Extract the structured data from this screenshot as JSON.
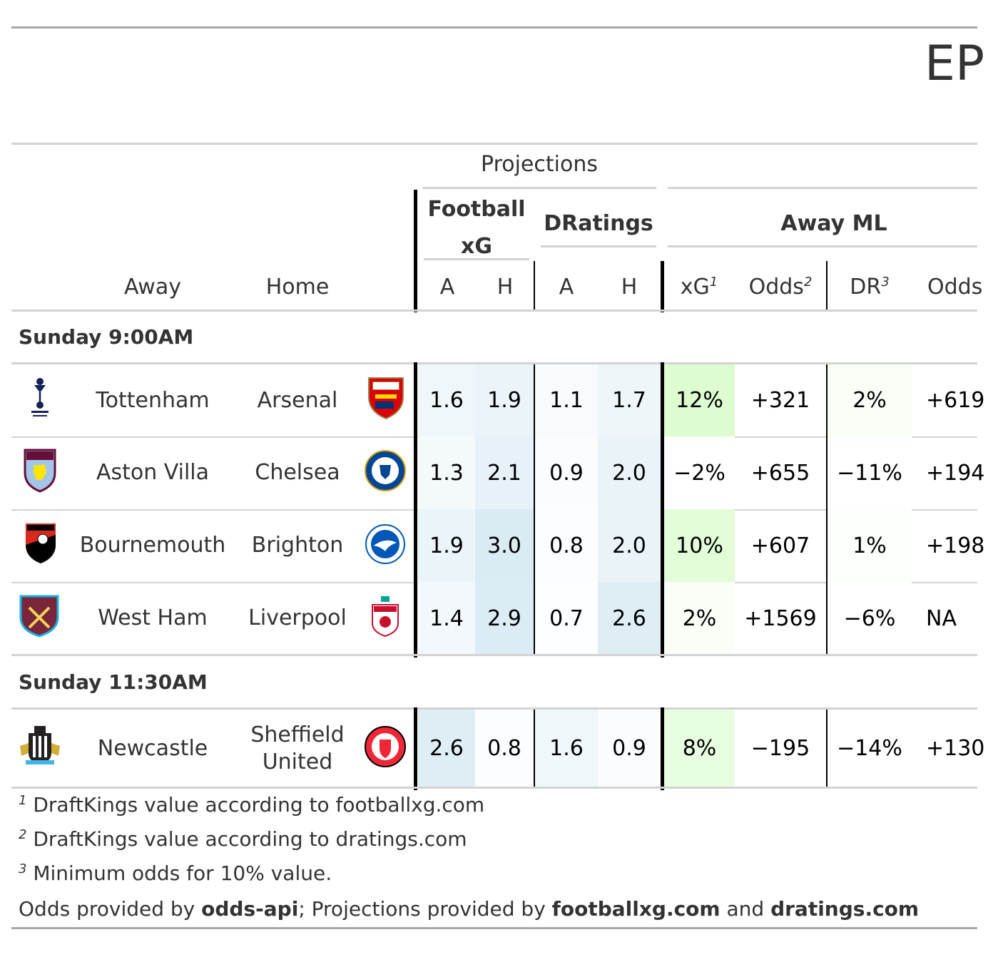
{
  "title": "EP",
  "spanners": {
    "projections": "Projections",
    "football_xg": [
      "Football",
      "xG"
    ],
    "dratings": "DRatings",
    "away_ml": "Away ML"
  },
  "columns": {
    "away": "Away",
    "home": "Home",
    "fxg_a": "A",
    "fxg_h": "H",
    "dr_a": "A",
    "dr_h": "H",
    "xg": "xG",
    "xg_sup": "1",
    "odds": "Odds",
    "odds_sup": "2",
    "dr": "DR",
    "dr_sup": "3",
    "odds2": "Odds"
  },
  "groups": [
    {
      "label": "Sunday 9:00AM",
      "rows": [
        {
          "away": "Tottenham",
          "home": "Arsenal",
          "away_logo": "tottenham-crest-icon",
          "home_logo": "arsenal-crest-icon",
          "fxg_a": "1.6",
          "fxg_h": "1.9",
          "dr_a": "1.1",
          "dr_h": "1.7",
          "xg_value": "12%",
          "odds": "+321",
          "dr_value": "2%",
          "odds2": "+619"
        },
        {
          "away": "Aston Villa",
          "home": "Chelsea",
          "away_logo": "aston-villa-crest-icon",
          "home_logo": "chelsea-crest-icon",
          "fxg_a": "1.3",
          "fxg_h": "2.1",
          "dr_a": "0.9",
          "dr_h": "2.0",
          "xg_value": "−2%",
          "odds": "+655",
          "dr_value": "−11%",
          "odds2": "+194"
        },
        {
          "away": "Bournemouth",
          "home": "Brighton",
          "away_logo": "bournemouth-crest-icon",
          "home_logo": "brighton-crest-icon",
          "fxg_a": "1.9",
          "fxg_h": "3.0",
          "dr_a": "0.8",
          "dr_h": "2.0",
          "xg_value": "10%",
          "odds": "+607",
          "dr_value": "1%",
          "odds2": "+198"
        },
        {
          "away": "West Ham",
          "home": "Liverpool",
          "away_logo": "west-ham-crest-icon",
          "home_logo": "liverpool-crest-icon",
          "fxg_a": "1.4",
          "fxg_h": "2.9",
          "dr_a": "0.7",
          "dr_h": "2.6",
          "xg_value": "2%",
          "odds": "+1569",
          "dr_value": "−6%",
          "odds2": "NA"
        }
      ]
    },
    {
      "label": "Sunday 11:30AM",
      "rows": [
        {
          "away": "Newcastle",
          "home": "Sheffield\nUnited",
          "away_logo": "newcastle-crest-icon",
          "home_logo": "sheffield-united-crest-icon",
          "fxg_a": "2.6",
          "fxg_h": "0.8",
          "dr_a": "1.6",
          "dr_h": "0.9",
          "xg_value": "8%",
          "odds": "−195",
          "dr_value": "−14%",
          "odds2": "+130"
        }
      ]
    }
  ],
  "footnotes": [
    {
      "mark": "1",
      "text": "DraftKings value according to footballxg.com"
    },
    {
      "mark": "2",
      "text": "DraftKings value according to dratings.com"
    },
    {
      "mark": "3",
      "text": "Minimum odds for 10% value."
    }
  ],
  "source": {
    "p1": "Odds provided by ",
    "b1": "odds-api",
    "p2": "; Projections provided by ",
    "b2": "footballxg.com",
    "p3": " and ",
    "b3": "dratings.com"
  },
  "colors": {
    "projection_scale": [
      "#ffffff",
      "#d6e9f2"
    ],
    "value_scale": [
      "#ffffff",
      "#dcfdd0"
    ],
    "rule": "#a8a8a8",
    "thin_rule": "#d3d3d3"
  }
}
